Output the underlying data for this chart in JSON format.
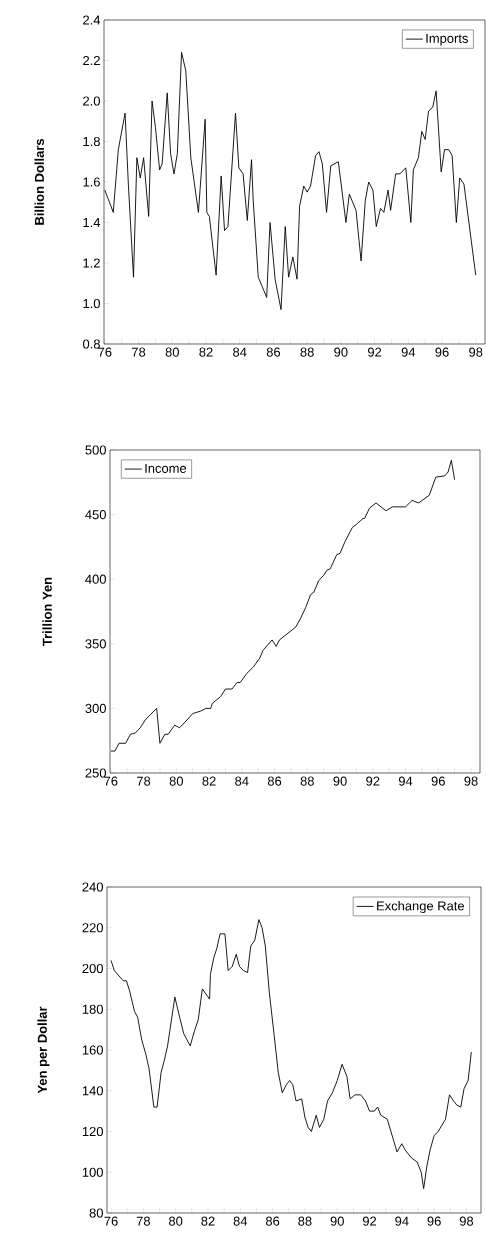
{
  "chart_data": [
    {
      "type": "line",
      "ylabel": "Billion Dollars",
      "legend": "top right",
      "x": [
        1976.0,
        1976.5,
        1976.8,
        1977.2,
        1977.4,
        1977.7,
        1977.9,
        1978.1,
        1978.3,
        1978.6,
        1978.8,
        1979.0,
        1979.25,
        1979.4,
        1979.7,
        1979.9,
        1980.1,
        1980.3,
        1980.55,
        1980.8,
        1981.1,
        1981.55,
        1981.95,
        1982.05,
        1982.2,
        1982.6,
        1982.9,
        1983.1,
        1983.3,
        1983.75,
        1983.95,
        1984.2,
        1984.45,
        1984.7,
        1984.8,
        1985.1,
        1985.6,
        1985.8,
        1986.1,
        1986.45,
        1986.7,
        1986.9,
        1987.15,
        1987.4,
        1987.55,
        1987.8,
        1988.0,
        1988.2,
        1988.5,
        1988.7,
        1988.9,
        1989.15,
        1989.4,
        1989.85,
        1990.3,
        1990.5,
        1990.9,
        1991.2,
        1991.45,
        1991.65,
        1991.9,
        1992.1,
        1992.35,
        1992.55,
        1992.8,
        1992.95,
        1993.25,
        1993.5,
        1993.85,
        1994.15,
        1994.3,
        1994.6,
        1994.8,
        1995.0,
        1995.2,
        1995.45,
        1995.65,
        1995.95,
        1996.15,
        1996.4,
        1996.6,
        1996.85,
        1997.05,
        1997.3,
        1998.0
      ],
      "series": [
        {
          "name": "Imports",
          "color": "#000000",
          "values": [
            1.56,
            1.45,
            1.76,
            1.94,
            1.58,
            1.13,
            1.72,
            1.62,
            1.72,
            1.43,
            2.0,
            1.87,
            1.66,
            1.69,
            2.04,
            1.74,
            1.64,
            1.74,
            2.24,
            2.15,
            1.72,
            1.45,
            1.91,
            1.45,
            1.43,
            1.14,
            1.63,
            1.36,
            1.38,
            1.94,
            1.67,
            1.64,
            1.41,
            1.71,
            1.51,
            1.13,
            1.03,
            1.4,
            1.12,
            0.97,
            1.38,
            1.13,
            1.23,
            1.12,
            1.48,
            1.58,
            1.55,
            1.58,
            1.73,
            1.75,
            1.69,
            1.45,
            1.68,
            1.7,
            1.4,
            1.54,
            1.46,
            1.21,
            1.51,
            1.6,
            1.56,
            1.38,
            1.47,
            1.45,
            1.56,
            1.46,
            1.64,
            1.64,
            1.67,
            1.4,
            1.66,
            1.72,
            1.85,
            1.81,
            1.95,
            1.97,
            2.05,
            1.65,
            1.76,
            1.76,
            1.73,
            1.4,
            1.62,
            1.59,
            1.14
          ]
        }
      ],
      "xlim": [
        1975.95,
        1998.55
      ],
      "ylim": [
        0.8,
        2.4
      ],
      "yticks": [
        0.8,
        {
          "value": 1.0,
          "label": "1.0"
        },
        1.2,
        1.4,
        1.6,
        1.8,
        {
          "value": 2.0,
          "label": "2.0"
        },
        2.2,
        2.4
      ],
      "xticks": [
        {
          "value": 1976,
          "label": "76"
        },
        {
          "value": 1977,
          "label": null
        },
        {
          "value": 1978,
          "label": "78"
        },
        {
          "value": 1979,
          "label": null
        },
        {
          "value": 1980,
          "label": "80"
        },
        {
          "value": 1981,
          "label": null
        },
        {
          "value": 1982,
          "label": "82"
        },
        {
          "value": 1983,
          "label": null
        },
        {
          "value": 1984,
          "label": "84"
        },
        {
          "value": 1985,
          "label": null
        },
        {
          "value": 1986,
          "label": "86"
        },
        {
          "value": 1987,
          "label": null
        },
        {
          "value": 1988,
          "label": "88"
        },
        {
          "value": 1989,
          "label": null
        },
        {
          "value": 1990,
          "label": "90"
        },
        {
          "value": 1991,
          "label": null
        },
        {
          "value": 1992,
          "label": "92"
        },
        {
          "value": 1993,
          "label": null
        },
        {
          "value": 1994,
          "label": "94"
        },
        {
          "value": 1995,
          "label": null
        },
        {
          "value": 1996,
          "label": "96"
        },
        {
          "value": 1997,
          "label": null
        },
        {
          "value": 1998,
          "label": "98"
        }
      ]
    },
    {
      "type": "line",
      "ylabel": "Trillion Yen",
      "legend": "top left",
      "x": [
        1976.0,
        1976.25,
        1976.5,
        1976.9,
        1977.2,
        1977.5,
        1977.8,
        1978.1,
        1978.4,
        1978.8,
        1979.0,
        1979.3,
        1979.5,
        1979.9,
        1980.2,
        1980.65,
        1981.0,
        1981.5,
        1981.8,
        1982.1,
        1982.2,
        1982.7,
        1983.0,
        1983.4,
        1983.7,
        1983.9,
        1984.3,
        1984.7,
        1985.1,
        1985.3,
        1985.85,
        1986.1,
        1986.3,
        1986.6,
        1987.0,
        1987.3,
        1987.6,
        1987.9,
        1988.2,
        1988.4,
        1988.7,
        1989.0,
        1989.2,
        1989.4,
        1989.8,
        1990.0,
        1990.3,
        1990.75,
        1991.05,
        1991.4,
        1991.5,
        1991.8,
        1992.2,
        1992.5,
        1992.8,
        1993.2,
        1994.0,
        1994.4,
        1994.8,
        1995.45,
        1995.85,
        1996.4,
        1996.6,
        1996.8,
        1997.0
      ],
      "series": [
        {
          "name": "Income",
          "color": "#000000",
          "values": [
            267,
            267,
            273,
            273,
            280,
            281,
            285,
            291,
            295,
            300,
            273,
            280,
            280,
            287,
            285,
            291,
            296,
            298,
            300,
            300,
            304,
            309,
            315,
            315,
            320,
            320,
            327,
            332,
            339,
            345,
            353,
            348,
            353,
            356,
            360,
            363,
            370,
            378,
            388,
            390,
            399,
            403,
            407,
            408,
            419,
            420,
            429,
            440,
            443,
            447,
            447,
            455,
            459,
            456,
            453,
            456,
            456,
            461,
            459,
            465,
            479,
            480,
            483,
            492,
            477
          ]
        }
      ],
      "xlim": [
        1975.95,
        1998.55
      ],
      "ylim": [
        250,
        500
      ],
      "yticks": [
        250,
        300,
        350,
        400,
        450,
        500
      ],
      "xticks": [
        {
          "value": 1976,
          "label": "76"
        },
        {
          "value": 1977,
          "label": null
        },
        {
          "value": 1978,
          "label": "78"
        },
        {
          "value": 1979,
          "label": null
        },
        {
          "value": 1980,
          "label": "80"
        },
        {
          "value": 1981,
          "label": null
        },
        {
          "value": 1982,
          "label": "82"
        },
        {
          "value": 1983,
          "label": null
        },
        {
          "value": 1984,
          "label": "84"
        },
        {
          "value": 1985,
          "label": null
        },
        {
          "value": 1986,
          "label": "86"
        },
        {
          "value": 1987,
          "label": null
        },
        {
          "value": 1988,
          "label": "88"
        },
        {
          "value": 1989,
          "label": null
        },
        {
          "value": 1990,
          "label": "90"
        },
        {
          "value": 1991,
          "label": null
        },
        {
          "value": 1992,
          "label": "92"
        },
        {
          "value": 1993,
          "label": null
        },
        {
          "value": 1994,
          "label": "94"
        },
        {
          "value": 1995,
          "label": null
        },
        {
          "value": 1996,
          "label": "96"
        },
        {
          "value": 1997,
          "label": null
        },
        {
          "value": 1998,
          "label": "98"
        }
      ]
    },
    {
      "type": "line",
      "ylabel": "Yen per Dollar",
      "legend": "top right",
      "x": [
        1976.0,
        1976.2,
        1976.75,
        1976.95,
        1977.15,
        1977.45,
        1977.65,
        1977.9,
        1978.15,
        1978.35,
        1978.65,
        1978.85,
        1979.1,
        1979.3,
        1979.5,
        1979.95,
        1980.25,
        1980.5,
        1980.9,
        1981.15,
        1981.4,
        1981.65,
        1982.1,
        1982.15,
        1982.35,
        1982.55,
        1982.75,
        1983.05,
        1983.25,
        1983.5,
        1983.75,
        1983.95,
        1984.2,
        1984.45,
        1984.65,
        1984.9,
        1985.15,
        1985.35,
        1985.55,
        1985.8,
        1986.1,
        1986.35,
        1986.6,
        1986.85,
        1987.05,
        1987.25,
        1987.45,
        1987.8,
        1988.0,
        1988.2,
        1988.4,
        1988.7,
        1988.9,
        1989.17,
        1989.4,
        1989.7,
        1990.0,
        1990.3,
        1990.6,
        1990.8,
        1991.1,
        1991.45,
        1991.75,
        1992.0,
        1992.3,
        1992.5,
        1992.7,
        1993.1,
        1993.4,
        1993.7,
        1994.0,
        1994.2,
        1994.6,
        1994.95,
        1995.2,
        1995.35,
        1995.55,
        1995.75,
        1996.0,
        1996.25,
        1996.7,
        1996.95,
        1997.2,
        1997.4,
        1997.65,
        1997.85,
        1998.1,
        1998.3
      ],
      "series": [
        {
          "name": "Exchange Rate",
          "color": "#000000",
          "values": [
            204,
            199,
            194,
            194,
            189,
            179,
            176,
            165,
            158,
            151,
            132,
            132,
            149,
            155,
            162,
            186,
            176,
            168,
            162,
            169,
            175,
            190,
            185,
            197,
            205,
            210,
            217,
            217,
            199,
            201,
            207,
            201,
            199,
            198,
            211,
            214,
            224,
            220,
            211,
            188,
            167,
            149,
            139,
            143,
            145,
            143,
            135,
            136,
            127,
            122,
            120,
            128,
            122,
            126,
            135,
            139,
            145,
            153,
            147,
            136,
            138,
            138,
            135,
            130,
            130,
            132,
            128,
            126,
            118,
            110,
            114,
            111,
            107,
            105,
            100,
            92,
            103,
            111,
            118,
            120,
            126,
            138,
            135,
            133,
            132,
            141,
            145,
            159
          ]
        }
      ],
      "xlim": [
        1975.75,
        1998.9
      ],
      "ylim": [
        80,
        240
      ],
      "yticks": [
        80,
        100,
        120,
        140,
        160,
        180,
        200,
        220,
        240
      ],
      "xticks": [
        {
          "value": 1976,
          "label": "76"
        },
        {
          "value": 1977,
          "label": null
        },
        {
          "value": 1978,
          "label": "78"
        },
        {
          "value": 1979,
          "label": null
        },
        {
          "value": 1980,
          "label": "80"
        },
        {
          "value": 1981,
          "label": null
        },
        {
          "value": 1982,
          "label": "82"
        },
        {
          "value": 1983,
          "label": null
        },
        {
          "value": 1984,
          "label": "84"
        },
        {
          "value": 1985,
          "label": null
        },
        {
          "value": 1986,
          "label": "86"
        },
        {
          "value": 1987,
          "label": null
        },
        {
          "value": 1988,
          "label": "88"
        },
        {
          "value": 1989,
          "label": null
        },
        {
          "value": 1990,
          "label": "90"
        },
        {
          "value": 1991,
          "label": null
        },
        {
          "value": 1992,
          "label": "92"
        },
        {
          "value": 1993,
          "label": null
        },
        {
          "value": 1994,
          "label": "94"
        },
        {
          "value": 1995,
          "label": null
        },
        {
          "value": 1996,
          "label": "96"
        },
        {
          "value": 1997,
          "label": null
        },
        {
          "value": 1998,
          "label": "98"
        }
      ]
    }
  ]
}
